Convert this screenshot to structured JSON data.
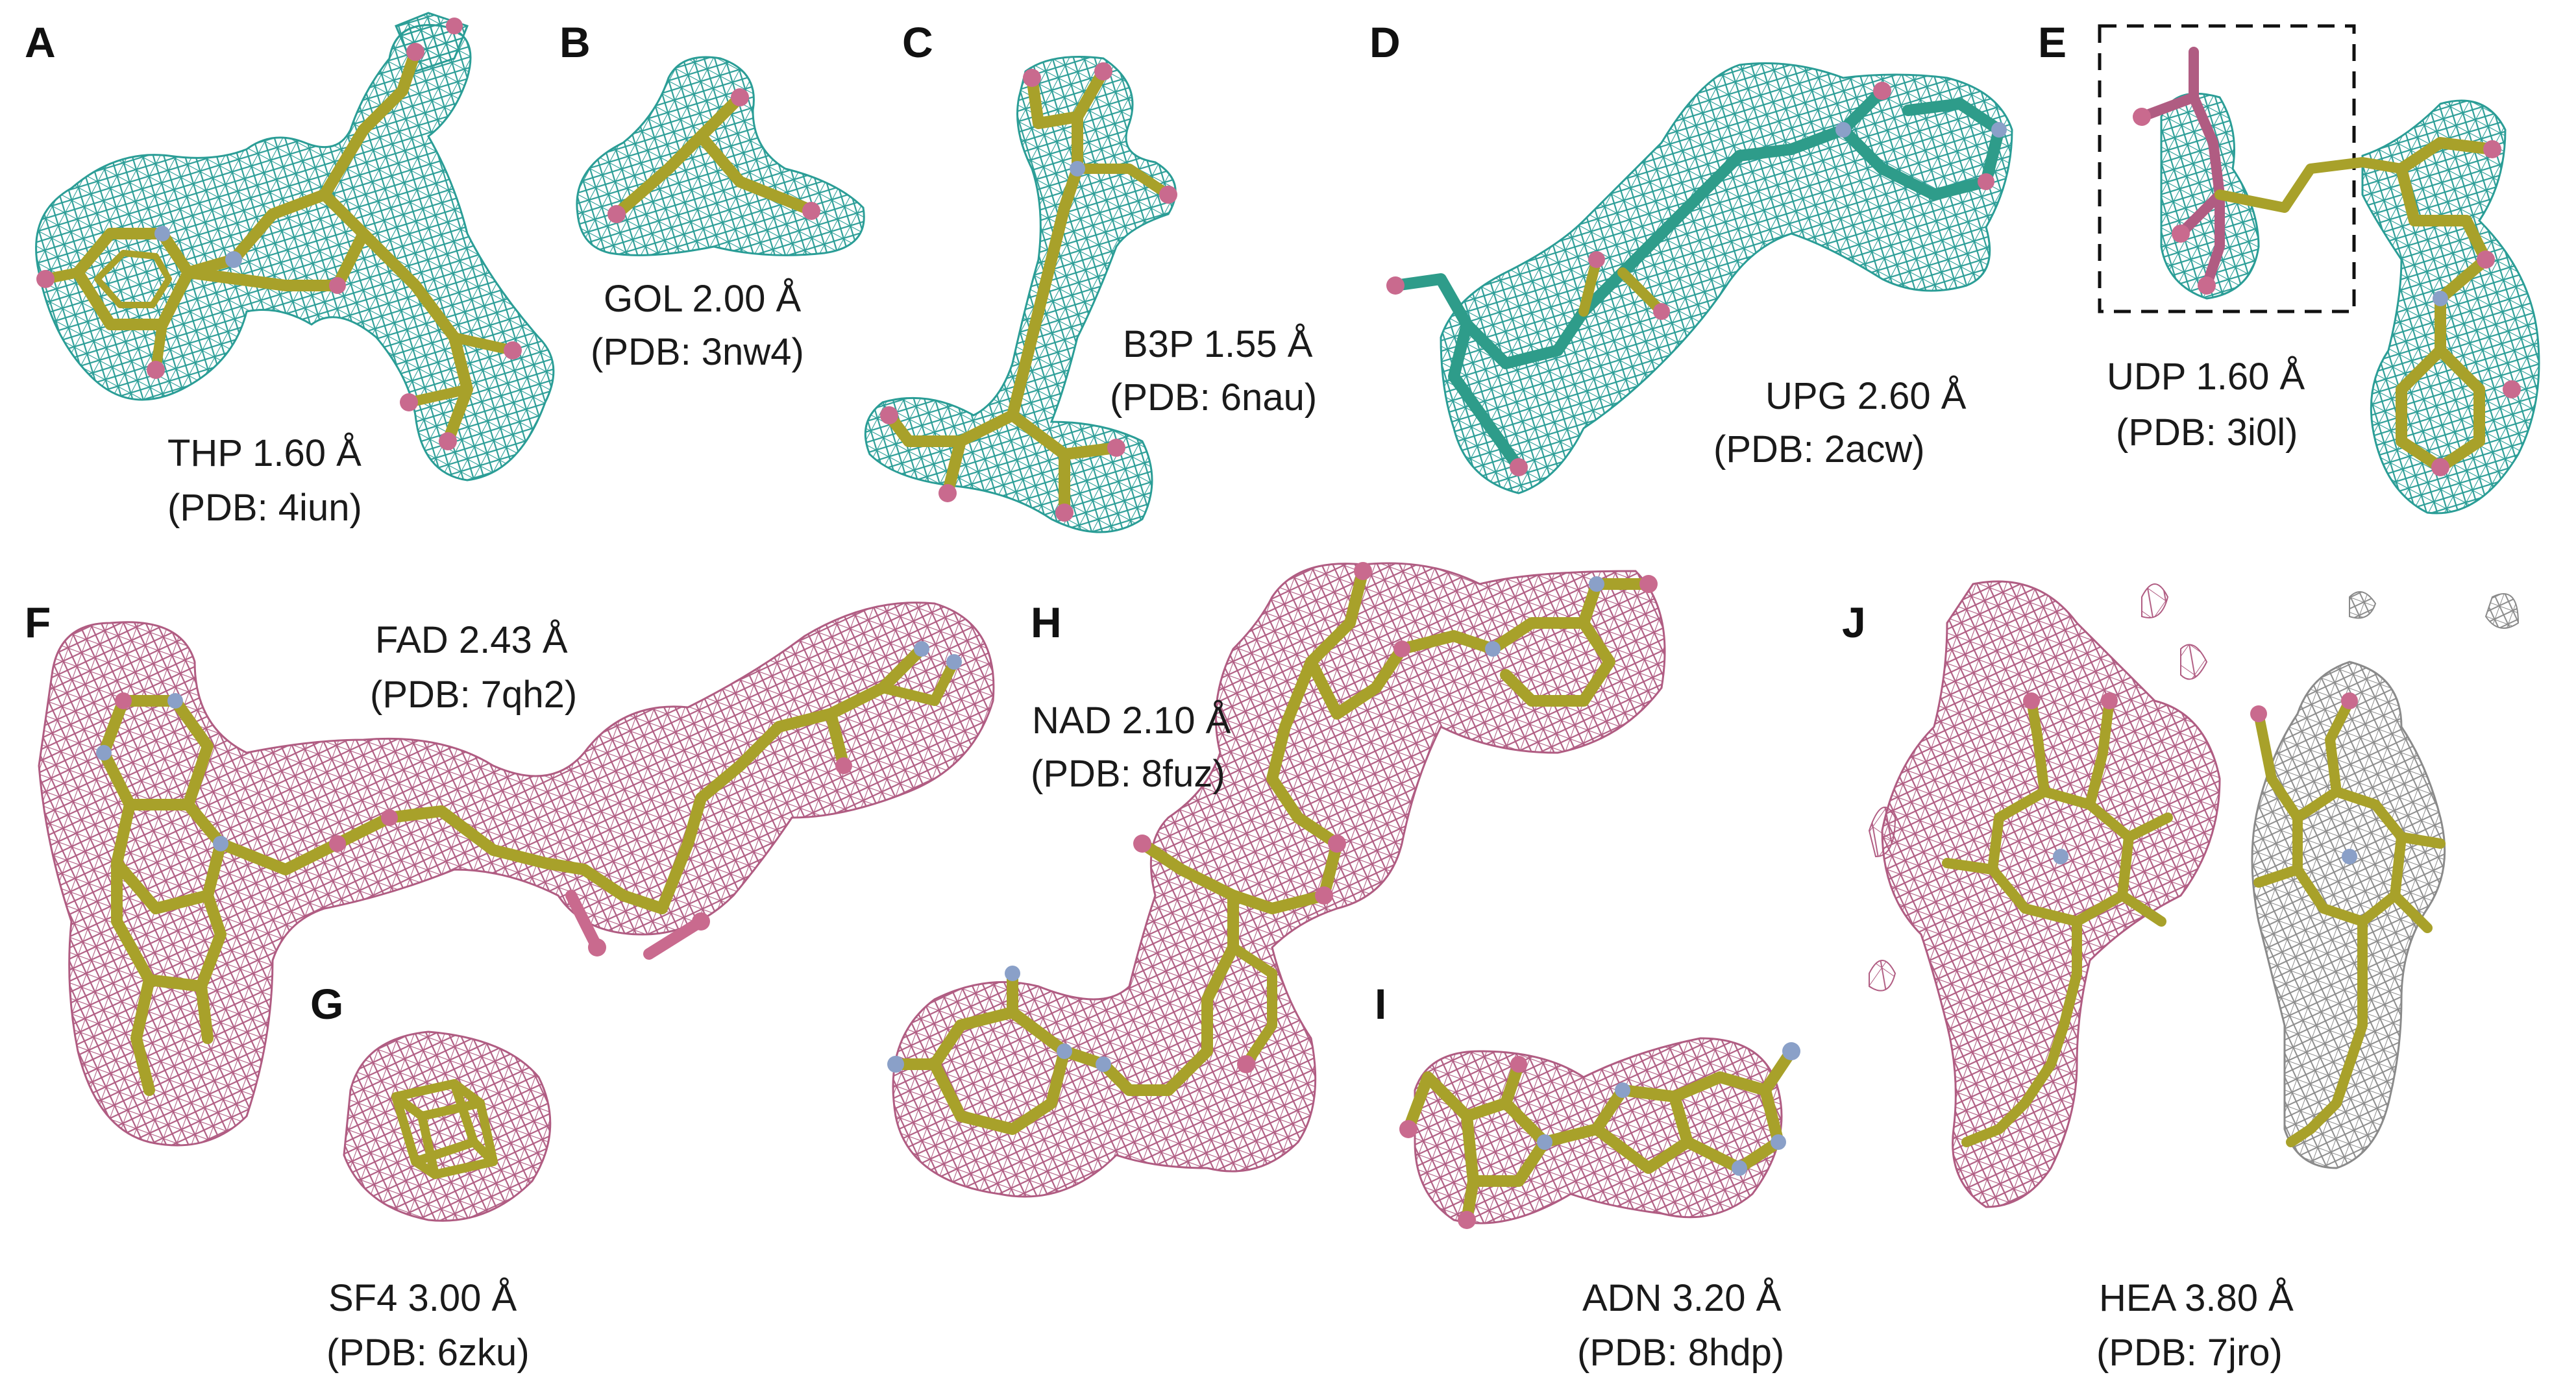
{
  "colors": {
    "teal_mesh": "#2a9d96",
    "pink_mesh": "#b05c82",
    "grey_mesh": "#8a8a8a",
    "carbon": "#a8a12a",
    "oxygen": "#c96a8e",
    "nitrogen": "#8aa0c8",
    "teal_carbon": "#2e9c8a"
  },
  "panels": [
    {
      "letter": "A",
      "name": "THP 1.60 Å",
      "pdb": "(PDB: 4iun)",
      "mesh": "teal"
    },
    {
      "letter": "B",
      "name": "GOL 2.00 Å",
      "pdb": "(PDB: 3nw4)",
      "mesh": "teal"
    },
    {
      "letter": "C",
      "name": "B3P 1.55 Å",
      "pdb": "(PDB: 6nau)",
      "mesh": "teal"
    },
    {
      "letter": "D",
      "name": "UPG 2.60 Å",
      "pdb": "(PDB: 2acw)",
      "mesh": "teal"
    },
    {
      "letter": "E",
      "name": "UDP 1.60 Å",
      "pdb": "(PDB: 3i0l)",
      "mesh": "teal"
    },
    {
      "letter": "F",
      "name": "FAD 2.43 Å",
      "pdb": "(PDB: 7qh2)",
      "mesh": "pink"
    },
    {
      "letter": "G",
      "name": "SF4 3.00 Å",
      "pdb": "(PDB: 6zku)",
      "mesh": "pink"
    },
    {
      "letter": "H",
      "name": "NAD 2.10 Å",
      "pdb": "(PDB: 8fuz)",
      "mesh": "pink"
    },
    {
      "letter": "I",
      "name": "ADN 3.20 Å",
      "pdb": "(PDB: 8hdp)",
      "mesh": "pink"
    },
    {
      "letter": "J",
      "name": "HEA 3.80 Å",
      "pdb": "(PDB: 7jro)",
      "mesh": "pink-and-grey"
    }
  ]
}
